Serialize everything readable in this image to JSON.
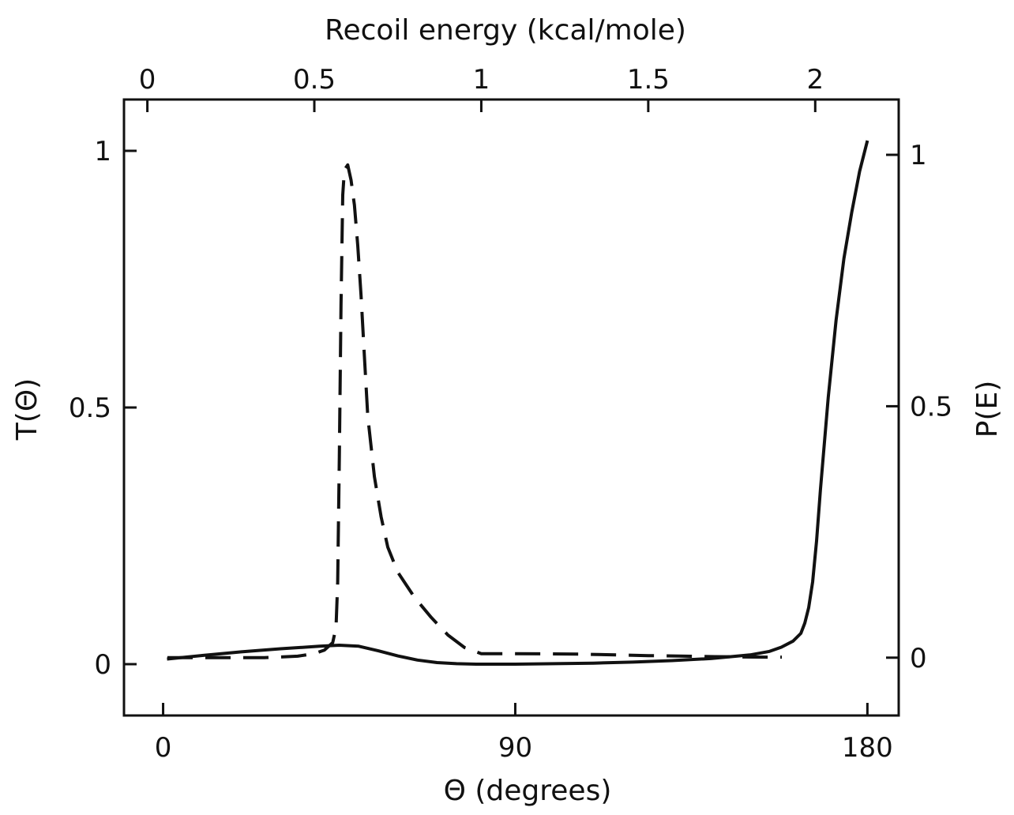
{
  "chart_data": {
    "type": "line",
    "title": "",
    "axes": {
      "bottom": {
        "label": "Θ (degrees)",
        "range": [
          -10,
          188
        ],
        "ticks": [
          0,
          90,
          180
        ],
        "tick_labels": [
          "0",
          "90",
          "180"
        ]
      },
      "top": {
        "label": "Recoil energy (kcal/mole)",
        "range": [
          -0.07,
          2.25
        ],
        "ticks": [
          0,
          0.5,
          1,
          1.5,
          2
        ],
        "tick_labels": [
          "0",
          "0.5",
          "1",
          "1.5",
          "2"
        ]
      },
      "left": {
        "label": "T(Θ)",
        "range": [
          -0.1,
          1.1
        ],
        "ticks": [
          0,
          0.5,
          1
        ],
        "tick_labels": [
          "0",
          "0.5",
          "1"
        ]
      },
      "right": {
        "label": "P(E)",
        "range": [
          -0.115,
          1.11
        ],
        "ticks": [
          0,
          0.5,
          1
        ],
        "tick_labels": [
          "0",
          "0.5",
          "1"
        ]
      }
    },
    "grid": false,
    "legend": "none",
    "series": [
      {
        "style": "solid",
        "x_axis": "bottom",
        "y_axis": "left",
        "color": "#111111",
        "points": [
          [
            1,
            0.01
          ],
          [
            10,
            0.017
          ],
          [
            20,
            0.024
          ],
          [
            30,
            0.03
          ],
          [
            40,
            0.035
          ],
          [
            45,
            0.037
          ],
          [
            50,
            0.035
          ],
          [
            55,
            0.026
          ],
          [
            60,
            0.016
          ],
          [
            65,
            0.008
          ],
          [
            70,
            0.003
          ],
          [
            75,
            0.001
          ],
          [
            80,
            0.0
          ],
          [
            90,
            0.0
          ],
          [
            100,
            0.001
          ],
          [
            110,
            0.002
          ],
          [
            120,
            0.004
          ],
          [
            130,
            0.007
          ],
          [
            140,
            0.011
          ],
          [
            150,
            0.018
          ],
          [
            155,
            0.025
          ],
          [
            158,
            0.033
          ],
          [
            161,
            0.045
          ],
          [
            163,
            0.06
          ],
          [
            164,
            0.08
          ],
          [
            165,
            0.11
          ],
          [
            166,
            0.16
          ],
          [
            167,
            0.24
          ],
          [
            168,
            0.34
          ],
          [
            170,
            0.52
          ],
          [
            172,
            0.67
          ],
          [
            174,
            0.79
          ],
          [
            176,
            0.88
          ],
          [
            178,
            0.96
          ],
          [
            180,
            1.02
          ]
        ]
      },
      {
        "style": "dashed",
        "x_axis": "top",
        "y_axis": "right",
        "color": "#111111",
        "points": [
          [
            0.06,
            0.0
          ],
          [
            0.2,
            0.0
          ],
          [
            0.35,
            0.0
          ],
          [
            0.45,
            0.003
          ],
          [
            0.5,
            0.008
          ],
          [
            0.53,
            0.015
          ],
          [
            0.555,
            0.03
          ],
          [
            0.565,
            0.06
          ],
          [
            0.57,
            0.15
          ],
          [
            0.575,
            0.4
          ],
          [
            0.58,
            0.7
          ],
          [
            0.585,
            0.92
          ],
          [
            0.59,
            0.97
          ],
          [
            0.6,
            0.98
          ],
          [
            0.61,
            0.95
          ],
          [
            0.62,
            0.9
          ],
          [
            0.63,
            0.82
          ],
          [
            0.64,
            0.72
          ],
          [
            0.65,
            0.6
          ],
          [
            0.66,
            0.48
          ],
          [
            0.68,
            0.36
          ],
          [
            0.7,
            0.28
          ],
          [
            0.72,
            0.22
          ],
          [
            0.75,
            0.17
          ],
          [
            0.8,
            0.12
          ],
          [
            0.85,
            0.08
          ],
          [
            0.9,
            0.045
          ],
          [
            0.95,
            0.02
          ],
          [
            1.0,
            0.008
          ],
          [
            1.1,
            0.008
          ],
          [
            1.3,
            0.007
          ],
          [
            1.5,
            0.004
          ],
          [
            1.7,
            0.002
          ],
          [
            1.85,
            0.001
          ],
          [
            1.9,
            0.001
          ]
        ]
      }
    ]
  }
}
